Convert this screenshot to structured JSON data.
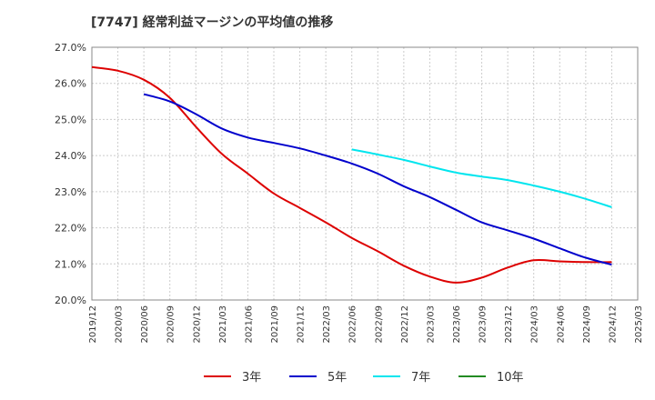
{
  "chart_data": {
    "type": "line",
    "title": "[7747]  経常利益マージンの平均値の推移",
    "ylim": [
      20.0,
      27.0
    ],
    "yticks": [
      "27.0%",
      "26.0%",
      "25.0%",
      "24.0%",
      "23.0%",
      "22.0%",
      "21.0%",
      "20.0%"
    ],
    "ytick_values": [
      27,
      26,
      25,
      24,
      23,
      22,
      21,
      20
    ],
    "x_start": "2019/12",
    "x_end": "2025/03",
    "xticks": [
      "2019/12",
      "2020/03",
      "2020/06",
      "2020/09",
      "2020/12",
      "2021/03",
      "2021/06",
      "2021/09",
      "2021/12",
      "2022/03",
      "2022/06",
      "2022/09",
      "2022/12",
      "2023/03",
      "2023/06",
      "2023/09",
      "2023/12",
      "2024/03",
      "2024/06",
      "2024/09",
      "2024/12",
      "2025/03"
    ],
    "grid": true,
    "legend_position": "bottom",
    "series": [
      {
        "name": "3年",
        "color": "#dd0000",
        "x": [
          "2019/12",
          "2020/03",
          "2020/06",
          "2020/09",
          "2020/12",
          "2021/03",
          "2021/06",
          "2021/09",
          "2021/12",
          "2022/03",
          "2022/06",
          "2022/09",
          "2022/12",
          "2023/03",
          "2023/06",
          "2023/09",
          "2023/12",
          "2024/03",
          "2024/06",
          "2024/09",
          "2024/12"
        ],
        "values": [
          26.45,
          26.35,
          26.1,
          25.6,
          24.8,
          24.05,
          23.5,
          22.95,
          22.55,
          22.15,
          21.72,
          21.35,
          20.95,
          20.65,
          20.48,
          20.62,
          20.9,
          21.1,
          21.07,
          21.05,
          21.05
        ]
      },
      {
        "name": "5年",
        "color": "#0000cc",
        "x": [
          "2020/06",
          "2020/09",
          "2020/12",
          "2021/03",
          "2021/06",
          "2021/09",
          "2021/12",
          "2022/03",
          "2022/06",
          "2022/09",
          "2022/12",
          "2023/03",
          "2023/06",
          "2023/09",
          "2023/12",
          "2024/03",
          "2024/06",
          "2024/09",
          "2024/12"
        ],
        "values": [
          25.7,
          25.5,
          25.15,
          24.75,
          24.5,
          24.35,
          24.2,
          24.0,
          23.78,
          23.5,
          23.15,
          22.85,
          22.5,
          22.15,
          21.93,
          21.7,
          21.43,
          21.17,
          20.98
        ]
      },
      {
        "name": "7年",
        "color": "#00e5ee",
        "x": [
          "2022/06",
          "2022/09",
          "2022/12",
          "2023/03",
          "2023/06",
          "2023/09",
          "2023/12",
          "2024/03",
          "2024/06",
          "2024/09",
          "2024/12"
        ],
        "values": [
          24.17,
          24.03,
          23.88,
          23.7,
          23.53,
          23.42,
          23.32,
          23.17,
          23.0,
          22.8,
          22.57
        ]
      },
      {
        "name": "10年",
        "color": "#228b22",
        "x": [],
        "values": []
      }
    ]
  }
}
